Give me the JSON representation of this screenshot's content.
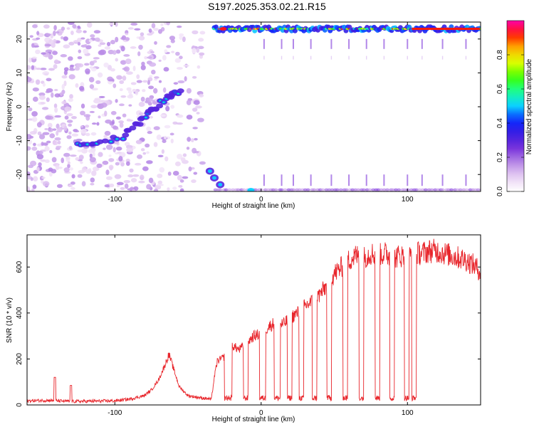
{
  "title": "S197.2025.353.02.21.R15",
  "colors": {
    "snr_line": "#e8252b",
    "axis": "#000000",
    "colormap": [
      "#ffffff",
      "#e9d2f4",
      "#b98be6",
      "#7a35dc",
      "#3d1be0",
      "#0a29ff",
      "#0bd0ff",
      "#19ff9b",
      "#3cff00",
      "#d8ff00",
      "#ffc000",
      "#ff1a00",
      "#ff00a8"
    ]
  },
  "chart_data": [
    {
      "type": "heatmap",
      "title": "",
      "xlabel": "Height of straight line (km)",
      "ylabel": "Frequency (Hz)",
      "xlim": [
        -160,
        150
      ],
      "ylim": [
        -25,
        25
      ],
      "x_ticks": [
        -100,
        0,
        100
      ],
      "x_tick_labels": [
        "-100",
        "0",
        "100"
      ],
      "y_ticks": [
        -20,
        -10,
        0,
        10,
        20
      ],
      "y_tick_labels": [
        "-20",
        "-10",
        "0",
        "10",
        "20"
      ],
      "colorbar": {
        "label": "Normalized spectral amplitude",
        "range": [
          0.0,
          1.0
        ],
        "ticks": [
          0.0,
          0.2,
          0.4,
          0.6,
          0.8
        ],
        "tick_labels": [
          "0.0",
          "0.2",
          "0.4",
          "0.6",
          "0.8"
        ]
      },
      "features": [
        {
          "name": "diffuse low-amplitude speckle",
          "x_range": [
            -160,
            -40
          ],
          "y_range": [
            -25,
            25
          ],
          "amplitude": 0.15
        },
        {
          "name": "rising chirp track",
          "points": [
            [
              -125,
              -11
            ],
            [
              -112,
              -11
            ],
            [
              -95,
              -9
            ],
            [
              -85,
              -5
            ],
            [
              -77,
              -2
            ],
            [
              -68,
              1
            ],
            [
              -61,
              4
            ],
            [
              -54,
              4
            ]
          ],
          "amplitude": 0.45
        },
        {
          "name": "upper band",
          "x_range": [
            -32,
            150
          ],
          "y": 23,
          "amplitude": 0.85
        },
        {
          "name": "lower band blob",
          "points": [
            [
              -35,
              -19
            ],
            [
              -32,
              -21
            ],
            [
              -28,
              -23
            ]
          ],
          "amplitude": 0.4
        },
        {
          "name": "vertical streaks",
          "x_positions": [
            2,
            14,
            22,
            34,
            48,
            60,
            72,
            84,
            100,
            110,
            124,
            140
          ],
          "amplitude": 0.2
        }
      ]
    },
    {
      "type": "line",
      "title": "",
      "xlabel": "Height of straight line (km)",
      "ylabel": "SNR (10 * v/v)",
      "xlim": [
        -160,
        150
      ],
      "ylim": [
        0,
        740
      ],
      "x_ticks": [
        -100,
        0,
        100
      ],
      "x_tick_labels": [
        "-100",
        "0",
        "100"
      ],
      "y_ticks": [
        0,
        200,
        400,
        600
      ],
      "y_tick_labels": [
        "0",
        "200",
        "400",
        "600"
      ],
      "baseline_points": [
        [
          -160,
          18
        ],
        [
          -145,
          20
        ],
        [
          -130,
          15
        ],
        [
          -120,
          16
        ],
        [
          -100,
          18
        ],
        [
          -90,
          25
        ],
        [
          -80,
          40
        ],
        [
          -75,
          65
        ],
        [
          -70,
          110
        ],
        [
          -66,
          170
        ],
        [
          -63,
          220
        ],
        [
          -60,
          160
        ],
        [
          -56,
          80
        ],
        [
          -50,
          40
        ],
        [
          -40,
          30
        ],
        [
          -34,
          25
        ],
        [
          -32,
          120
        ],
        [
          -30,
          190
        ],
        [
          -25,
          210
        ],
        [
          -20,
          260
        ],
        [
          -15,
          240
        ],
        [
          -10,
          270
        ],
        [
          -5,
          300
        ],
        [
          0,
          310
        ],
        [
          5,
          340
        ],
        [
          10,
          360
        ],
        [
          15,
          350
        ],
        [
          20,
          380
        ],
        [
          25,
          400
        ],
        [
          30,
          430
        ],
        [
          35,
          450
        ],
        [
          40,
          480
        ],
        [
          45,
          520
        ],
        [
          50,
          570
        ],
        [
          55,
          600
        ],
        [
          60,
          630
        ],
        [
          65,
          650
        ],
        [
          70,
          640
        ],
        [
          75,
          660
        ],
        [
          80,
          650
        ],
        [
          85,
          660
        ],
        [
          90,
          640
        ],
        [
          95,
          650
        ],
        [
          100,
          640
        ],
        [
          105,
          660
        ],
        [
          110,
          660
        ],
        [
          115,
          670
        ],
        [
          120,
          670
        ],
        [
          125,
          660
        ],
        [
          130,
          650
        ],
        [
          135,
          640
        ],
        [
          140,
          630
        ],
        [
          145,
          610
        ],
        [
          150,
          580
        ]
      ],
      "spikes": [
        [
          -141,
          120
        ],
        [
          -130,
          85
        ]
      ],
      "dropouts": [
        [
          -25,
          -20
        ],
        [
          -12,
          -9
        ],
        [
          -1,
          3
        ],
        [
          9,
          13
        ],
        [
          18,
          21
        ],
        [
          26,
          29
        ],
        [
          35,
          38
        ],
        [
          45,
          48
        ],
        [
          56,
          59
        ],
        [
          67,
          70
        ],
        [
          78,
          81
        ],
        [
          88,
          91
        ],
        [
          98,
          101
        ],
        [
          103,
          106
        ]
      ],
      "dropout_value": 30
    }
  ]
}
